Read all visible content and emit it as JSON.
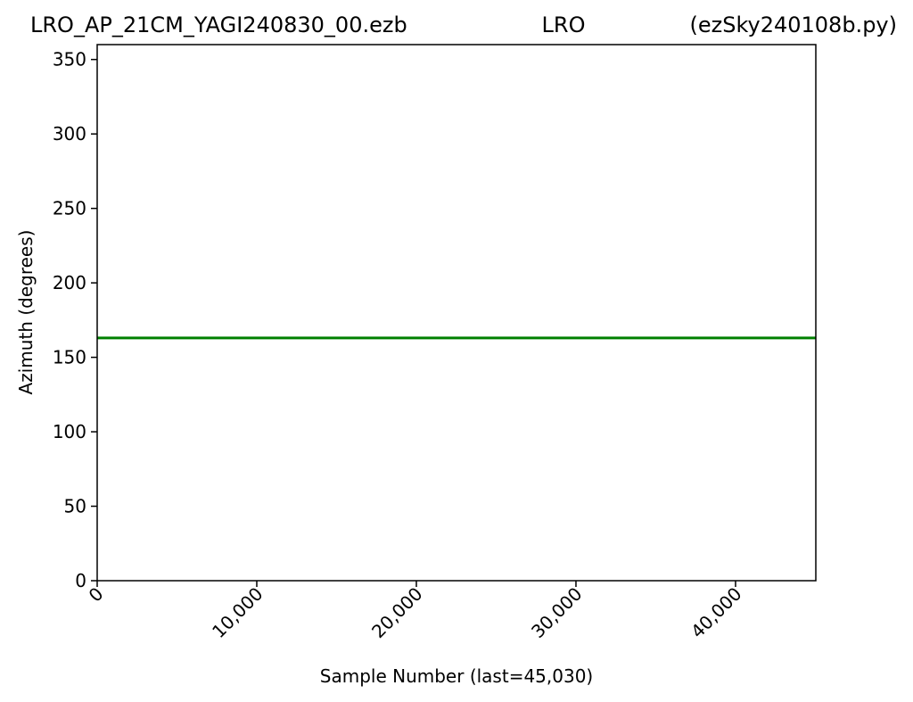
{
  "chart_data": {
    "type": "line",
    "title_parts": [
      "LRO_AP_21CM_YAGI240830_00.ezb",
      "LRO",
      "(ezSky240108b.py)"
    ],
    "xlabel": "Sample Number (last=45,030)",
    "ylabel": "Azimuth (degrees)",
    "xlim": [
      0,
      45030
    ],
    "ylim": [
      0,
      360
    ],
    "xticks": [
      0,
      10000,
      20000,
      30000,
      40000
    ],
    "xtick_labels": [
      "0",
      "10,000",
      "20,000",
      "30,000",
      "40,000"
    ],
    "yticks": [
      0,
      50,
      100,
      150,
      200,
      250,
      300,
      350
    ],
    "ytick_labels": [
      "0",
      "50",
      "100",
      "150",
      "200",
      "250",
      "300",
      "350"
    ],
    "grid": false,
    "series": [
      {
        "color": "#008000",
        "x": [
          0,
          45030
        ],
        "y": [
          163,
          163
        ]
      }
    ]
  }
}
